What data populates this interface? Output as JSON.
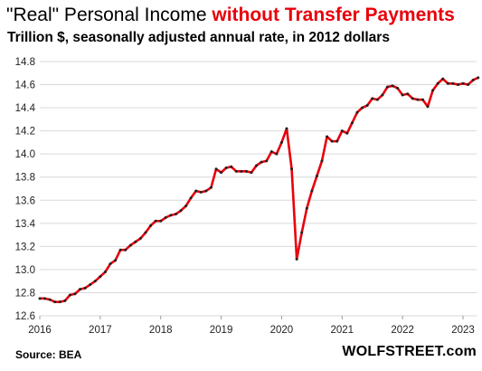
{
  "title": {
    "part1": "\"Real\" Personal Income ",
    "part2": "without Transfer Payments"
  },
  "subtitle": "Trillion $, seasonally adjusted annual rate, in 2012 dollars",
  "footer": {
    "source": "Source: BEA",
    "credit": "WOLFSTREET.com"
  },
  "colors": {
    "line": "#e8000b",
    "markers": "#222222",
    "grid": "#d9d9d9",
    "title_accent": "#e8000b"
  },
  "chart_data": {
    "type": "line",
    "title": "\"Real\" Personal Income without Transfer Payments",
    "ylabel": "Trillion $, seasonally adjusted annual rate, in 2012 dollars",
    "xlabel": "",
    "xlim": [
      2016,
      2023.3
    ],
    "ylim": [
      12.6,
      14.8
    ],
    "y_ticks": [
      "12.6",
      "12.8",
      "13.0",
      "13.2",
      "13.4",
      "13.6",
      "13.8",
      "14.0",
      "14.2",
      "14.4",
      "14.6",
      "14.8"
    ],
    "x_ticks": [
      "2016",
      "2017",
      "2018",
      "2019",
      "2020",
      "2021",
      "2022",
      "2023"
    ],
    "grid": "horizontal",
    "series": [
      {
        "values": [
          12.75,
          12.75,
          12.74,
          12.72,
          12.72,
          12.73,
          12.78,
          12.79,
          12.83,
          12.84,
          12.87,
          12.9,
          12.94,
          12.98,
          13.05,
          13.08,
          13.17,
          13.17,
          13.21,
          13.24,
          13.27,
          13.32,
          13.38,
          13.42,
          13.42,
          13.45,
          13.47,
          13.48,
          13.51,
          13.55,
          13.62,
          13.68,
          13.67,
          13.68,
          13.71,
          13.87,
          13.84,
          13.88,
          13.89,
          13.85,
          13.85,
          13.85,
          13.84,
          13.9,
          13.93,
          13.94,
          14.02,
          14.0,
          14.1,
          14.22,
          13.87,
          13.09,
          13.32,
          13.53,
          13.68,
          13.81,
          13.94,
          14.15,
          14.11,
          14.11,
          14.2,
          14.18,
          14.27,
          14.36,
          14.4,
          14.42,
          14.48,
          14.47,
          14.51,
          14.58,
          14.59,
          14.57,
          14.51,
          14.52,
          14.48,
          14.47,
          14.47,
          14.41,
          14.55,
          14.61,
          14.65,
          14.61,
          14.61,
          14.6,
          14.61,
          14.6,
          14.64,
          14.66
        ]
      }
    ]
  }
}
